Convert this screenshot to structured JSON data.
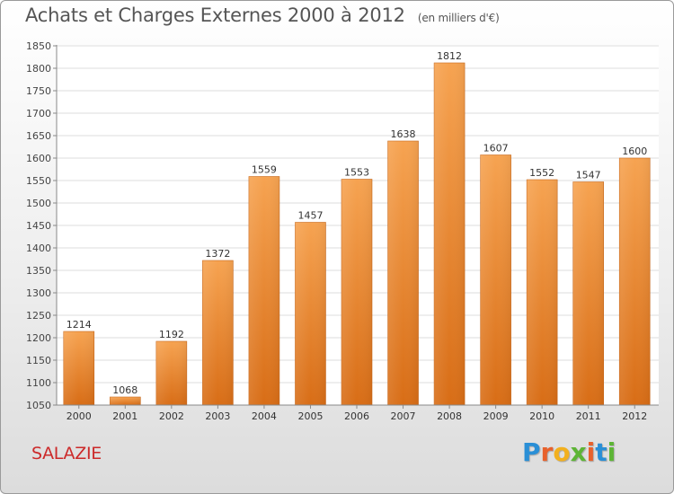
{
  "header": {
    "title": "Achats et Charges Externes 2000 à 2012",
    "subtitle": "(en milliers d'€)"
  },
  "footer": {
    "town": "SALAZIE",
    "logo": {
      "letters": [
        "P",
        "r",
        "o",
        "x",
        "i",
        "t",
        "i"
      ],
      "colors": [
        "#2a8fd6",
        "#e8612c",
        "#f2b01e",
        "#5db535",
        "#e8612c",
        "#2a8fd6",
        "#5db535"
      ]
    }
  },
  "chart_data": {
    "type": "bar",
    "title": "Achats et Charges Externes 2000 à 2012",
    "subtitle": "(en milliers d'€)",
    "categories": [
      "2000",
      "2001",
      "2002",
      "2003",
      "2004",
      "2005",
      "2006",
      "2007",
      "2008",
      "2009",
      "2010",
      "2011",
      "2012"
    ],
    "values": [
      1214,
      1068,
      1192,
      1372,
      1559,
      1457,
      1553,
      1638,
      1812,
      1607,
      1552,
      1547,
      1600
    ],
    "ylim": [
      1050,
      1850
    ],
    "yticks": [
      1050,
      1100,
      1150,
      1200,
      1250,
      1300,
      1350,
      1400,
      1450,
      1500,
      1550,
      1600,
      1650,
      1700,
      1750,
      1800,
      1850
    ],
    "grid": true,
    "bar_color_top": "#f6a351",
    "bar_color_bottom": "#d86d16",
    "label_color": "#333333"
  }
}
